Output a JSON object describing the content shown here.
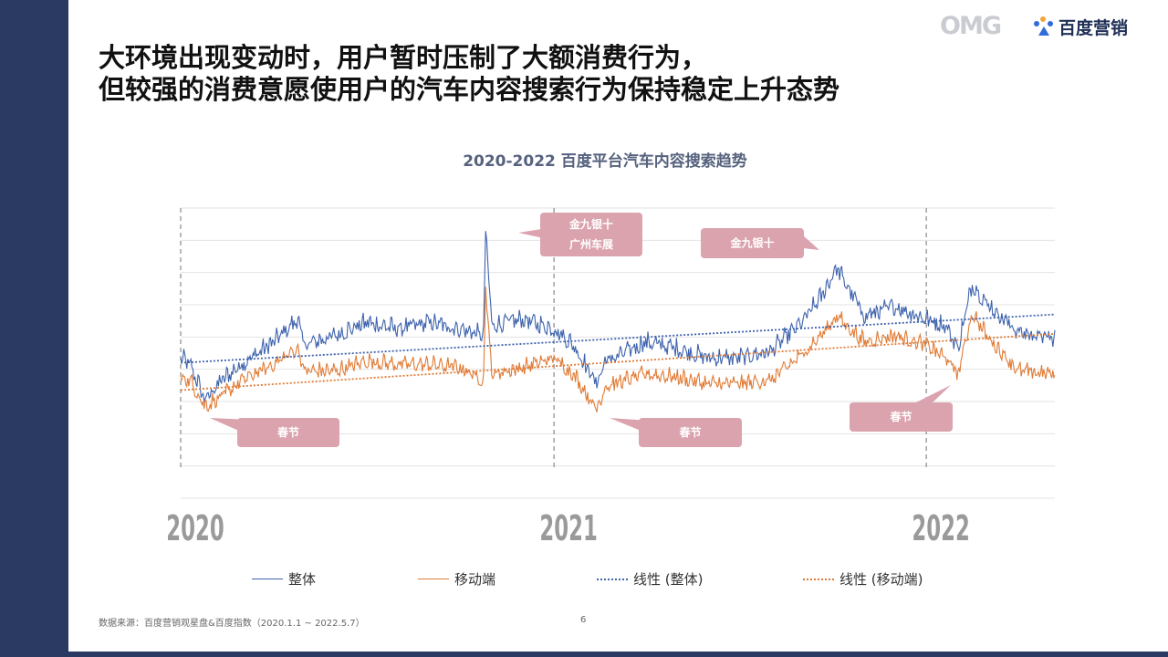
{
  "slide": {
    "title_line1": "大环境出现变动时，用户暂时压制了大额消费行为，",
    "title_line2": "但较强的消费意愿使用户的汽车内容搜索行为保持稳定上升态势",
    "logo_omg": "OMG",
    "logo_baidu": "百度营销",
    "source": "数据来源：百度营销观星盘&百度指数（2020.1.1 ~ 2022.5.7）",
    "page_number": "6"
  },
  "colors": {
    "sidebar": "#2b3a62",
    "overall": "#3e63ad",
    "mobile": "#e07b35",
    "callout": "#dba3ae"
  },
  "chart_data": {
    "type": "line",
    "title": "2020-2022 百度平台汽车内容搜索趋势",
    "x_range": [
      "2020-01-01",
      "2022-05-07"
    ],
    "x_tick_labels": [
      "2020",
      "2021",
      "2022"
    ],
    "y_axis_labels_shown": false,
    "grid": "horizontal",
    "ylim": [
      0,
      9
    ],
    "series": [
      {
        "name": "整体",
        "color": "#3e63ad",
        "style": "solid",
        "x": [
          "2020-01-01",
          "2020-01-10",
          "2020-01-25",
          "2020-02-10",
          "2020-03-01",
          "2020-04-01",
          "2020-04-25",
          "2020-05-01",
          "2020-06-01",
          "2020-07-01",
          "2020-08-01",
          "2020-09-01",
          "2020-10-01",
          "2020-10-24",
          "2020-10-26",
          "2020-11-01",
          "2020-12-01",
          "2021-01-01",
          "2021-01-20",
          "2021-02-12",
          "2021-02-20",
          "2021-03-01",
          "2021-04-01",
          "2021-05-01",
          "2021-06-01",
          "2021-07-01",
          "2021-08-01",
          "2021-09-01",
          "2021-09-20",
          "2021-10-05",
          "2021-10-25",
          "2021-11-01",
          "2021-12-01",
          "2022-01-01",
          "2022-01-20",
          "2022-02-01",
          "2022-02-15",
          "2022-03-01",
          "2022-04-01",
          "2022-05-07"
        ],
        "values": [
          4.3,
          4.1,
          3.0,
          3.6,
          4.1,
          4.8,
          5.5,
          4.7,
          5.0,
          5.4,
          5.2,
          5.4,
          5.2,
          5.0,
          8.3,
          5.3,
          5.5,
          5.2,
          4.7,
          3.5,
          4.2,
          4.3,
          4.8,
          4.6,
          4.3,
          4.3,
          4.5,
          5.4,
          6.2,
          7.1,
          6.0,
          5.6,
          5.9,
          5.5,
          5.3,
          4.6,
          6.6,
          6.0,
          5.1,
          4.9
        ]
      },
      {
        "name": "移动端",
        "color": "#e07b35",
        "style": "solid",
        "x": [
          "2020-01-01",
          "2020-01-10",
          "2020-01-25",
          "2020-02-10",
          "2020-03-01",
          "2020-04-01",
          "2020-04-25",
          "2020-05-01",
          "2020-06-01",
          "2020-07-01",
          "2020-08-01",
          "2020-09-01",
          "2020-10-01",
          "2020-10-24",
          "2020-10-26",
          "2020-11-01",
          "2020-12-01",
          "2021-01-01",
          "2021-01-20",
          "2021-02-12",
          "2021-02-20",
          "2021-03-01",
          "2021-04-01",
          "2021-05-01",
          "2021-06-01",
          "2021-07-01",
          "2021-08-01",
          "2021-09-01",
          "2021-09-20",
          "2021-10-05",
          "2021-10-25",
          "2021-11-01",
          "2021-12-01",
          "2022-01-01",
          "2022-01-20",
          "2022-02-01",
          "2022-02-15",
          "2022-03-01",
          "2022-04-01",
          "2022-05-07"
        ],
        "values": [
          3.7,
          3.6,
          2.8,
          3.1,
          3.6,
          4.1,
          4.6,
          3.9,
          3.9,
          4.2,
          4.1,
          4.1,
          4.0,
          3.6,
          6.5,
          3.8,
          4.0,
          4.3,
          3.8,
          2.7,
          3.4,
          3.5,
          3.8,
          3.7,
          3.5,
          3.5,
          3.6,
          4.4,
          5.0,
          5.6,
          5.0,
          4.8,
          5.0,
          4.7,
          4.3,
          3.8,
          5.7,
          5.0,
          3.9,
          3.8
        ]
      },
      {
        "name": "线性 (整体)",
        "color": "#3e63ad",
        "style": "dotted",
        "x": [
          "2020-01-01",
          "2022-05-07"
        ],
        "values": [
          4.2,
          5.7
        ]
      },
      {
        "name": "线性 (移动端)",
        "color": "#e07b35",
        "style": "dotted",
        "x": [
          "2020-01-01",
          "2022-05-07"
        ],
        "values": [
          3.35,
          5.1
        ]
      }
    ],
    "annotations": [
      {
        "text_lines": [
          "金九银十",
          "广州车展"
        ],
        "target_date": "2020-10-26"
      },
      {
        "text_lines": [
          "金九银十"
        ],
        "target_date": "2021-10-05"
      },
      {
        "text_lines": [
          "春节"
        ],
        "target_date": "2020-01-25"
      },
      {
        "text_lines": [
          "春节"
        ],
        "target_date": "2021-02-12"
      },
      {
        "text_lines": [
          "春节"
        ],
        "target_date": "2022-02-01"
      }
    ]
  }
}
